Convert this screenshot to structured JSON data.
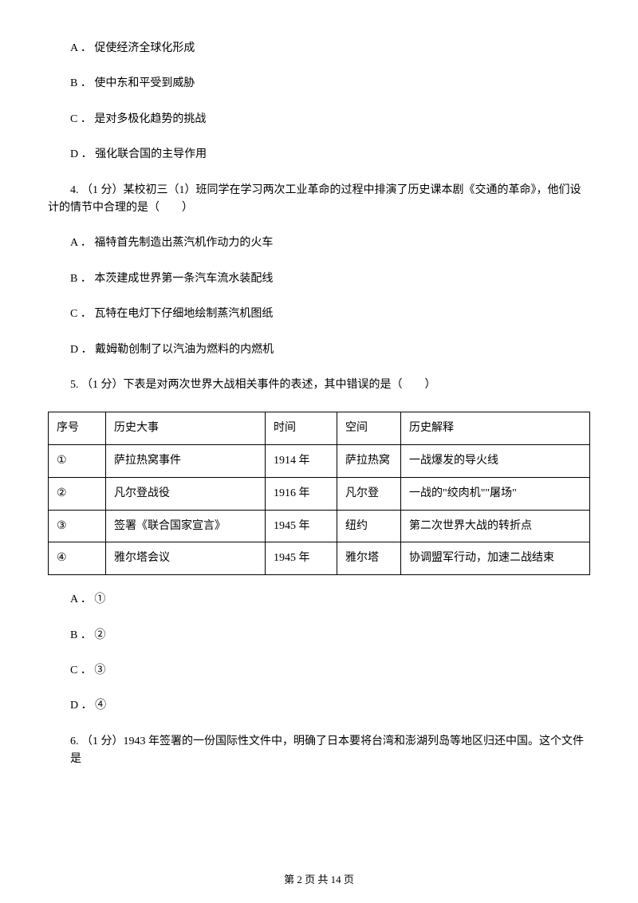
{
  "q3": {
    "options": {
      "a": "A ． 促使经济全球化形成",
      "b": "B ． 使中东和平受到威胁",
      "c": "C ． 是对多极化趋势的挑战",
      "d": "D ． 强化联合国的主导作用"
    }
  },
  "q4": {
    "stem": "4.   （1 分）某校初三（1）班同学在学习两次工业革命的过程中排演了历史课本剧《交通的革命》，他们设计的情节中合理的是（　　）",
    "options": {
      "a": "A ． 福特首先制造出蒸汽机作动力的火车",
      "b": "B ． 本茨建成世界第一条汽车流水装配线",
      "c": "C ． 瓦特在电灯下仔细地绘制蒸汽机图纸",
      "d": "D ． 戴姆勒创制了以汽油为燃料的内燃机"
    }
  },
  "q5": {
    "stem": "5.  （1 分）下表是对两次世界大战相关事件的表述，其中错误的是（　　）",
    "table": {
      "header": {
        "c1": "序号",
        "c2": "历史大事",
        "c3": "时间",
        "c4": "空间",
        "c5": "历史解释"
      },
      "rows": [
        {
          "c1": "①",
          "c2": "萨拉热窝事件",
          "c3": "1914 年",
          "c4": "萨拉热窝",
          "c5": "一战爆发的导火线"
        },
        {
          "c1": "②",
          "c2": "凡尔登战役",
          "c3": "1916 年",
          "c4": "凡尔登",
          "c5": "一战的\"绞肉机\"\"屠场\""
        },
        {
          "c1": "③",
          "c2": "签署《联合国家宣言》",
          "c3": "1945 年",
          "c4": "纽约",
          "c5": "第二次世界大战的转折点"
        },
        {
          "c1": "④",
          "c2": "雅尔塔会议",
          "c3": "1945 年",
          "c4": "雅尔塔",
          "c5": "协调盟军行动，加速二战结束"
        }
      ]
    },
    "options": {
      "a": "A ． ①",
      "b": "B ． ②",
      "c": "C ． ③",
      "d": "D ． ④"
    }
  },
  "q6": {
    "stem": "6.  （1 分）1943 年签署的一份国际性文件中，明确了日本要将台湾和澎湖列岛等地区归还中国。这个文件是"
  },
  "footer": "第 2 页 共 14 页"
}
